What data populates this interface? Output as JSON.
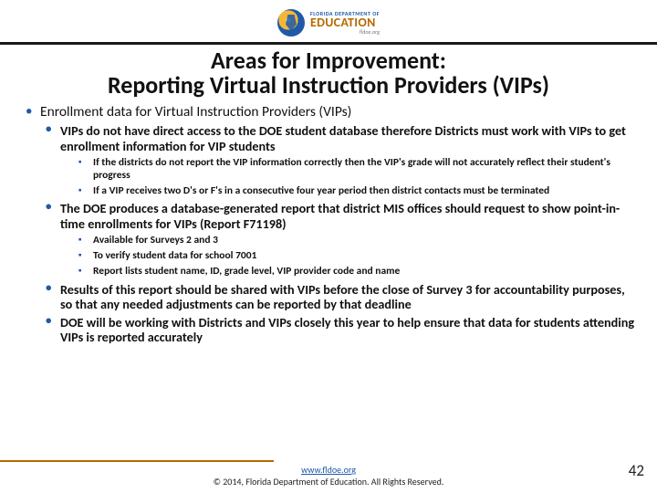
{
  "logo": {
    "top": "FLORIDA DEPARTMENT OF",
    "main": "EDUCATION",
    "sub": "fldoe.org"
  },
  "title": {
    "line1": "Areas for Improvement:",
    "line2": "Reporting Virtual Instruction Providers (VIPs)"
  },
  "b1": "Enrollment data for Virtual Instruction Providers (VIPs)",
  "b1a": "VIPs do not have direct access to the DOE student database therefore Districts must work with VIPs to get enrollment information for VIP students",
  "b1a1": "If the districts do not report the VIP information correctly then the VIP's grade will not accurately reflect their student's progress",
  "b1a2": "If a VIP receives two D's or F's in a consecutive four year period then district contacts must be terminated",
  "b1b": "The DOE produces a database-generated report that district MIS offices should request to show point-in-time enrollments for VIPs (Report F71198)",
  "b1b1": "Available for Surveys 2 and 3",
  "b1b2": "To verify student data for school 7001",
  "b1b3": "Report lists student name, ID, grade level, VIP provider code and name",
  "b1c_pre": "Results of this report should be shared with VIPs ",
  "b1c_bold": "before",
  "b1c_post": " the close of Survey 3 for accountability purposes, so that any needed adjustments can be reported by that deadline",
  "b1d": "DOE will be working with Districts and VIPs closely this year to help ensure that data for students attending VIPs is reported accurately",
  "footer": {
    "link": "www.fldoe.org",
    "copyright": "© 2014, Florida Department of Education. All Rights Reserved."
  },
  "page": "42"
}
